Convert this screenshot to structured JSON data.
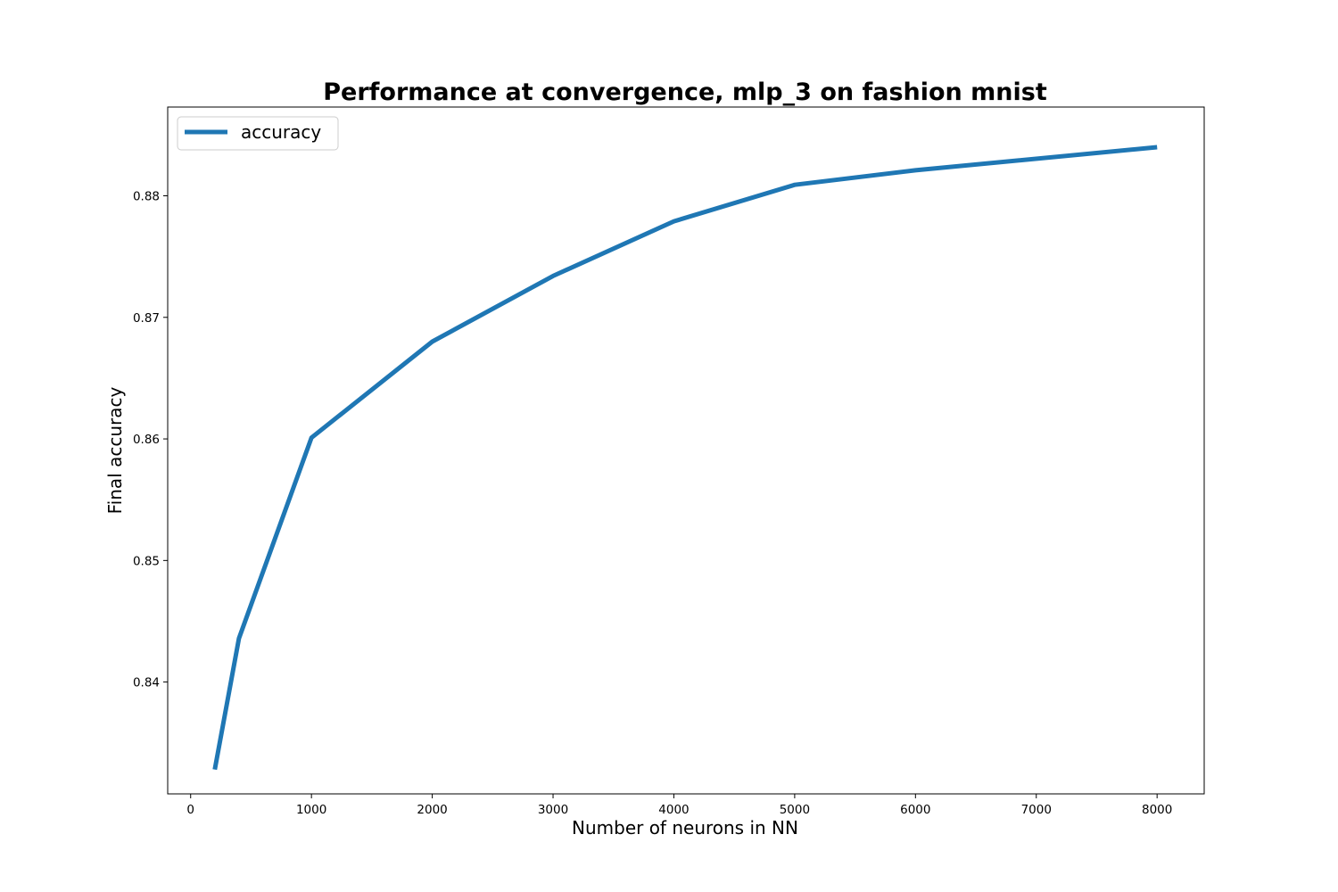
{
  "chart_data": {
    "type": "line",
    "title": "Performance at convergence, mlp_3 on fashion mnist",
    "xlabel": "Number of neurons in NN",
    "ylabel": "Final accuracy",
    "xlim": [
      -190,
      8390
    ],
    "ylim": [
      0.8308,
      0.8873
    ],
    "xticks": [
      0,
      1000,
      2000,
      3000,
      4000,
      5000,
      6000,
      7000,
      8000
    ],
    "xtick_labels": [
      "0",
      "1000",
      "2000",
      "3000",
      "4000",
      "5000",
      "6000",
      "7000",
      "8000"
    ],
    "yticks": [
      0.84,
      0.85,
      0.86,
      0.87,
      0.88
    ],
    "ytick_labels": [
      "0.84",
      "0.85",
      "0.86",
      "0.87",
      "0.88"
    ],
    "grid": false,
    "legend_position": "top-left",
    "series": [
      {
        "name": "accuracy",
        "color": "#1f77b4",
        "x": [
          200,
          400,
          1000,
          2000,
          3000,
          4000,
          5000,
          6000,
          8000
        ],
        "y": [
          0.8328,
          0.8436,
          0.8601,
          0.868,
          0.8734,
          0.8779,
          0.8809,
          0.8821,
          0.884
        ]
      }
    ]
  }
}
